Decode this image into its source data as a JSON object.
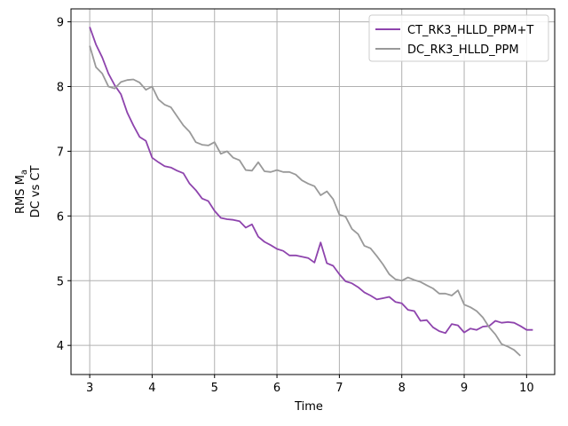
{
  "chart_data": {
    "type": "line",
    "xlabel": "Time",
    "ylabel_line1": "RMS M",
    "ylabel_sub": "a",
    "ylabel_line2": "DC vs CT",
    "xlim": [
      2.7,
      10.45
    ],
    "ylim": [
      3.55,
      9.2
    ],
    "xticks": [
      3,
      4,
      5,
      6,
      7,
      8,
      9,
      10
    ],
    "yticks": [
      4,
      5,
      6,
      7,
      8,
      9
    ],
    "grid": true,
    "legend_position": "top-right",
    "series": [
      {
        "name": "CT_RK3_HLLD_PPM+T",
        "color": "#8e44ad",
        "x": [
          3.0,
          3.1,
          3.2,
          3.3,
          3.4,
          3.5,
          3.6,
          3.7,
          3.8,
          3.9,
          4.0,
          4.1,
          4.2,
          4.3,
          4.4,
          4.5,
          4.6,
          4.7,
          4.8,
          4.9,
          5.0,
          5.1,
          5.2,
          5.3,
          5.4,
          5.5,
          5.6,
          5.7,
          5.8,
          5.9,
          6.0,
          6.1,
          6.2,
          6.3,
          6.4,
          6.5,
          6.6,
          6.7,
          6.8,
          6.9,
          7.0,
          7.1,
          7.2,
          7.3,
          7.4,
          7.5,
          7.6,
          7.7,
          7.8,
          7.9,
          8.0,
          8.1,
          8.2,
          8.3,
          8.4,
          8.5,
          8.6,
          8.7,
          8.8,
          8.9,
          9.0,
          9.1,
          9.2,
          9.3,
          9.4,
          9.5,
          9.6,
          9.7,
          9.8,
          9.9,
          10.0,
          10.1
        ],
        "y": [
          8.92,
          8.65,
          8.45,
          8.2,
          8.02,
          7.88,
          7.6,
          7.4,
          7.22,
          7.16,
          6.9,
          6.83,
          6.77,
          6.75,
          6.7,
          6.66,
          6.5,
          6.4,
          6.27,
          6.23,
          6.08,
          5.97,
          5.95,
          5.94,
          5.92,
          5.82,
          5.87,
          5.68,
          5.6,
          5.55,
          5.49,
          5.46,
          5.39,
          5.39,
          5.37,
          5.35,
          5.28,
          5.59,
          5.27,
          5.23,
          5.1,
          4.99,
          4.96,
          4.9,
          4.82,
          4.77,
          4.71,
          4.73,
          4.75,
          4.67,
          4.65,
          4.55,
          4.53,
          4.38,
          4.39,
          4.28,
          4.22,
          4.19,
          4.33,
          4.31,
          4.2,
          4.26,
          4.24,
          4.29,
          4.3,
          4.38,
          4.35,
          4.36,
          4.35,
          4.3,
          4.24,
          4.24
        ]
      },
      {
        "name": "DC_RK3_HLLD_PPM",
        "color": "#999999",
        "x": [
          3.0,
          3.1,
          3.2,
          3.3,
          3.4,
          3.5,
          3.6,
          3.7,
          3.8,
          3.9,
          4.0,
          4.1,
          4.2,
          4.3,
          4.4,
          4.5,
          4.6,
          4.7,
          4.8,
          4.9,
          5.0,
          5.1,
          5.2,
          5.3,
          5.4,
          5.5,
          5.6,
          5.7,
          5.8,
          5.9,
          6.0,
          6.1,
          6.2,
          6.3,
          6.4,
          6.5,
          6.6,
          6.7,
          6.8,
          6.9,
          7.0,
          7.1,
          7.2,
          7.3,
          7.4,
          7.5,
          7.6,
          7.7,
          7.8,
          7.9,
          8.0,
          8.1,
          8.2,
          8.3,
          8.4,
          8.5,
          8.6,
          8.7,
          8.8,
          8.9,
          9.0,
          9.1,
          9.2,
          9.3,
          9.4,
          9.5,
          9.6,
          9.7,
          9.8,
          9.9
        ],
        "y": [
          8.63,
          8.3,
          8.2,
          8.0,
          7.97,
          8.07,
          8.1,
          8.11,
          8.06,
          7.95,
          8.0,
          7.8,
          7.72,
          7.68,
          7.54,
          7.4,
          7.3,
          7.14,
          7.1,
          7.09,
          7.14,
          6.96,
          7.0,
          6.9,
          6.86,
          6.71,
          6.7,
          6.83,
          6.69,
          6.68,
          6.71,
          6.68,
          6.68,
          6.64,
          6.55,
          6.5,
          6.46,
          6.32,
          6.38,
          6.26,
          6.02,
          5.99,
          5.8,
          5.72,
          5.54,
          5.5,
          5.38,
          5.25,
          5.1,
          5.02,
          5.0,
          5.05,
          5.01,
          4.98,
          4.93,
          4.88,
          4.8,
          4.8,
          4.77,
          4.85,
          4.63,
          4.59,
          4.53,
          4.43,
          4.28,
          4.17,
          4.02,
          3.98,
          3.93,
          3.84
        ]
      }
    ]
  }
}
